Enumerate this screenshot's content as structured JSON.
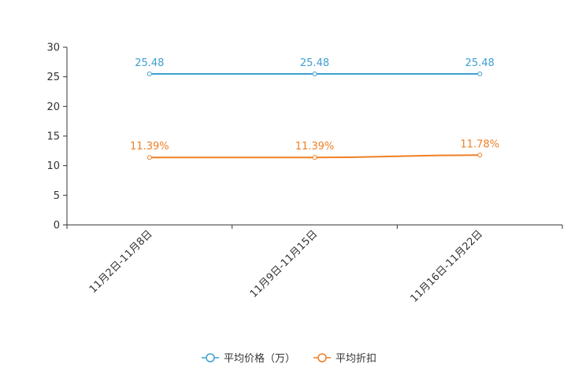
{
  "chart_data": {
    "type": "line",
    "title": "",
    "xlabel": "",
    "ylabel": "",
    "categories": [
      "11月2日-11月8日",
      "11月9日-11月15日",
      "11月16日-11月22日"
    ],
    "ylim": [
      0,
      30
    ],
    "yticks": [
      "0",
      "5",
      "10",
      "15",
      "20",
      "25",
      "30"
    ],
    "series": [
      {
        "name": "平均价格（万）",
        "color": "#3ea0d0",
        "values": [
          25.48,
          25.48,
          25.48
        ],
        "labels": [
          "25.48",
          "25.48",
          "25.48"
        ]
      },
      {
        "name": "平均折扣",
        "color": "#f07f23",
        "values": [
          11.39,
          11.39,
          11.78
        ],
        "labels": [
          "11.39%",
          "11.39%",
          "11.78%"
        ]
      }
    ],
    "legend_position": "bottom-center",
    "grid": false
  }
}
